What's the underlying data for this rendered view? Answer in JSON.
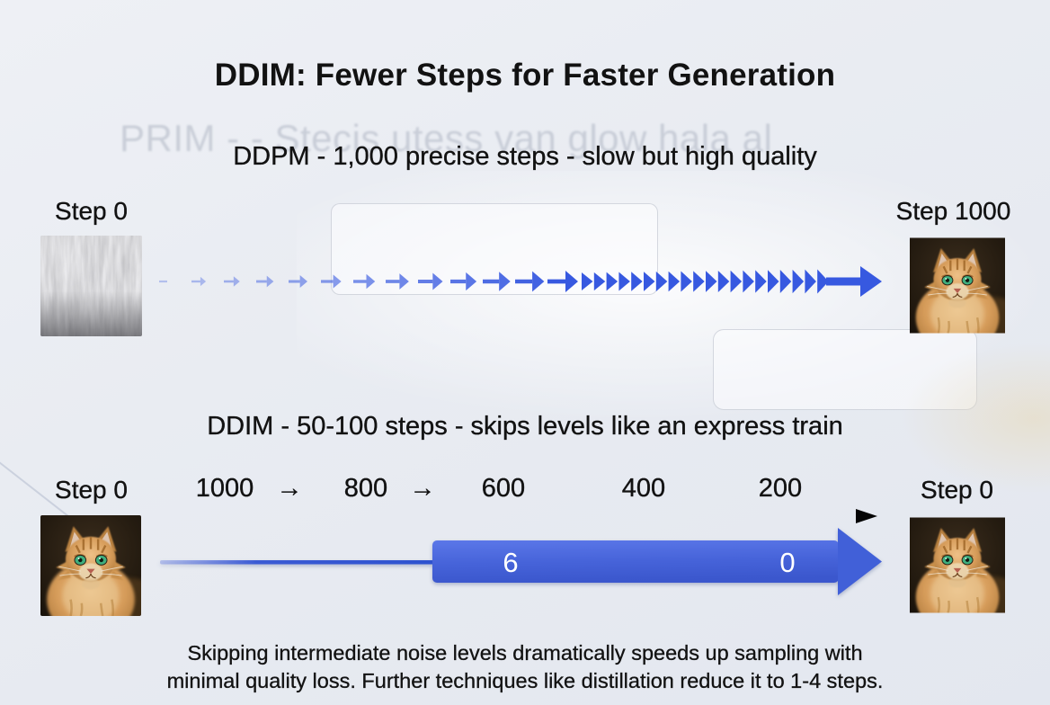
{
  "slide": {
    "title": "DDIM: Fewer Steps for Faster Generation",
    "ghost_text": "PRIM - - Stecis utess van glow hala al",
    "caption": {
      "line1": "Skipping intermediate noise levels dramatically speeds up sampling with",
      "line2": "minimal quality loss. Further techniques like distillation reduce it to 1-4 steps."
    }
  },
  "ddpm_section": {
    "heading": "DDPM - 1,000 precise steps - slow but high quality",
    "start_label": "Step 0",
    "end_label": "Step 1000",
    "start_image": "noise-texture",
    "end_image": "fluffy-orange-cat",
    "arrow_flow": {
      "growing_arrow_count": 13,
      "dense_arrowhead_count": 20,
      "color": "#3759e0"
    }
  },
  "ddim_section": {
    "heading": "DDIM - 50-100 steps - skips levels like an express train",
    "start_label": "Step 0",
    "end_label": "Step 0",
    "start_image": "fluffy-orange-cat",
    "end_image": "fluffy-orange-cat",
    "timeline_labels": [
      "1000",
      "→",
      "800",
      "→",
      "600",
      "400",
      "200"
    ],
    "timeline_arrow_color": "#0a0a0a",
    "express_arrow": {
      "labels": [
        "6",
        "0"
      ],
      "color_top": "#5b77e8",
      "color_bottom": "#3b57cd"
    }
  },
  "colors": {
    "background": "#e9ecf2",
    "text": "#121212",
    "arrow_blue": "#3759e0",
    "ghost_text": "#b4bac7"
  }
}
